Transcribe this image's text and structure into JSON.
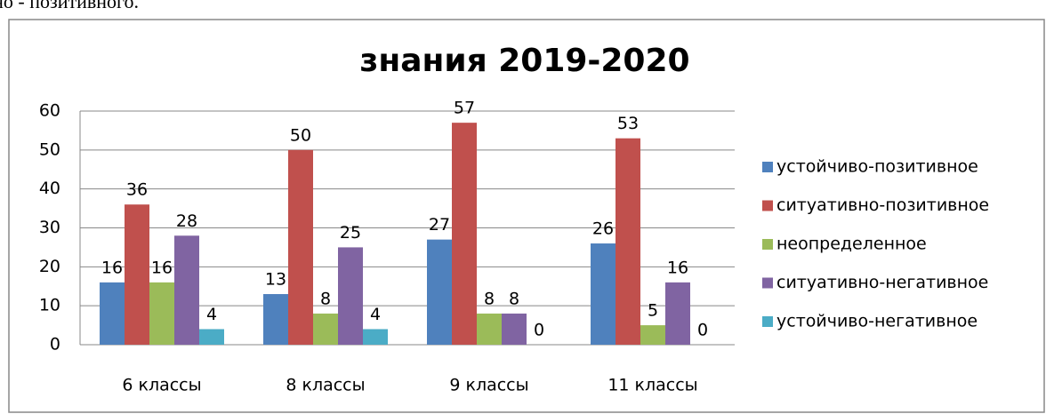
{
  "page_text": "ивно - позитивного.",
  "chart_data": {
    "type": "bar",
    "title": "знания 2019-2020",
    "categories": [
      "6 классы",
      "8 классы",
      "9 классы",
      "11 классы"
    ],
    "series": [
      {
        "name": "устойчиво-позитивное",
        "color": "#4f81bd",
        "values": [
          16,
          13,
          27,
          26
        ]
      },
      {
        "name": "ситуативно-позитивное",
        "color": "#c0504d",
        "values": [
          36,
          50,
          57,
          53
        ]
      },
      {
        "name": "неопределенное",
        "color": "#9bbb59",
        "values": [
          16,
          8,
          8,
          5
        ]
      },
      {
        "name": "ситуативно-негативное",
        "color": "#8064a2",
        "values": [
          28,
          25,
          8,
          16
        ]
      },
      {
        "name": "устойчиво-негативное",
        "color": "#4bacc6",
        "values": [
          4,
          4,
          0,
          0
        ]
      }
    ],
    "ylim": [
      0,
      60
    ],
    "yticks": [
      0,
      10,
      20,
      30,
      40,
      50,
      60
    ],
    "grid": true,
    "legend": "right"
  }
}
